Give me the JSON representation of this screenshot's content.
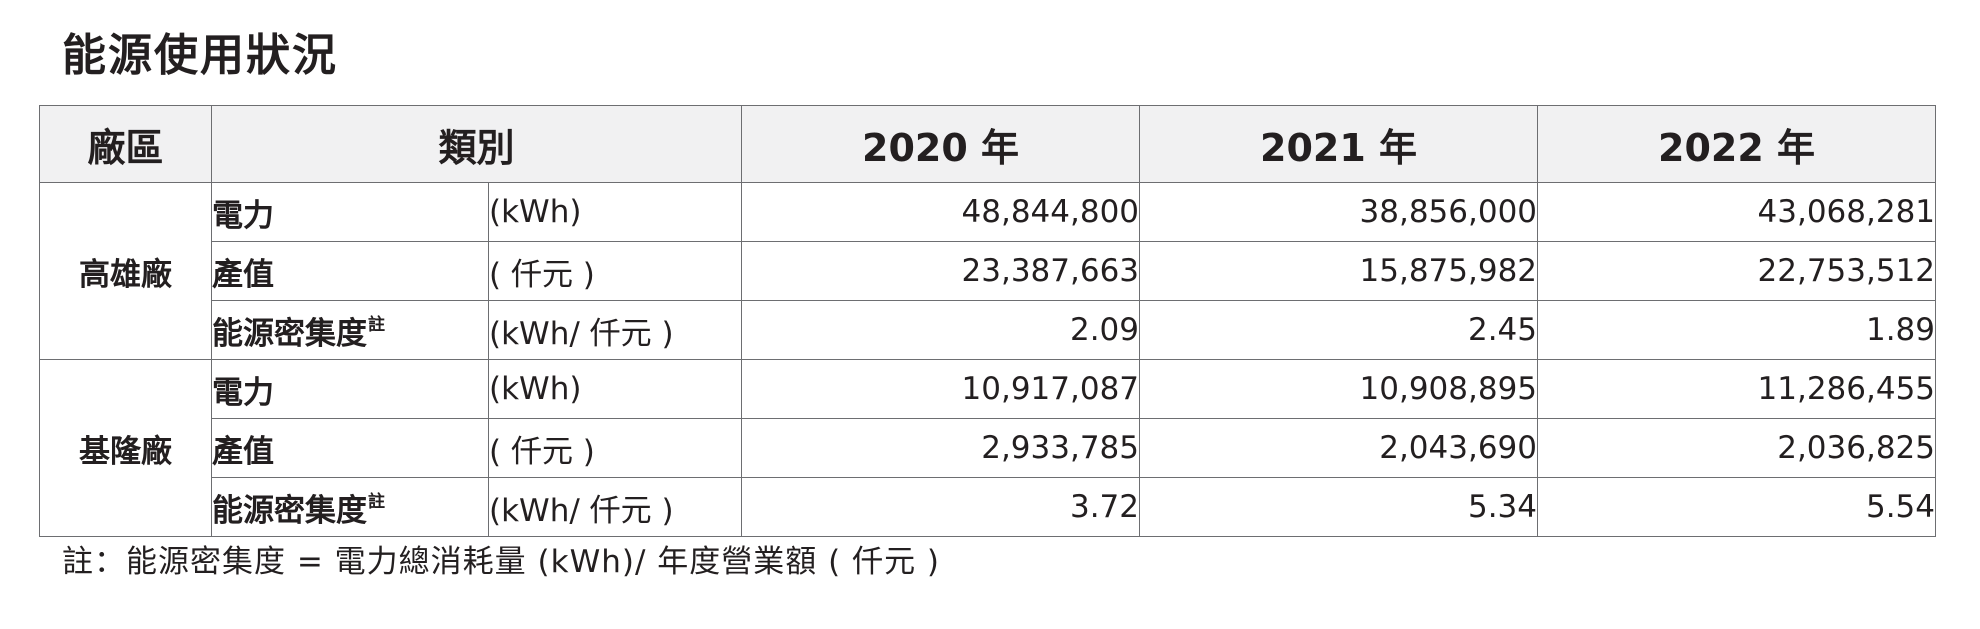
{
  "title": "能源使用狀況",
  "table": {
    "headers": {
      "factory": "廠區",
      "category": "類別",
      "years": [
        "2020 年",
        "2021 年",
        "2022 年"
      ]
    },
    "groups": [
      {
        "factory": "高雄廠",
        "rows": [
          {
            "category": "電力",
            "note": "",
            "unit": "(kWh)",
            "values": [
              "48,844,800",
              "38,856,000",
              "43,068,281"
            ]
          },
          {
            "category": "產值",
            "note": "",
            "unit": "( 仟元 )",
            "values": [
              "23,387,663",
              "15,875,982",
              "22,753,512"
            ]
          },
          {
            "category": "能源密集度",
            "note": "註",
            "unit": "(kWh/ 仟元 )",
            "values": [
              "2.09",
              "2.45",
              "1.89"
            ]
          }
        ]
      },
      {
        "factory": "基隆廠",
        "rows": [
          {
            "category": "電力",
            "note": "",
            "unit": "(kWh)",
            "values": [
              "10,917,087",
              "10,908,895",
              "11,286,455"
            ]
          },
          {
            "category": "產值",
            "note": "",
            "unit": "( 仟元 )",
            "values": [
              "2,933,785",
              "2,043,690",
              "2,036,825"
            ]
          },
          {
            "category": "能源密集度",
            "note": "註",
            "unit": "(kWh/ 仟元 )",
            "values": [
              "3.72",
              "5.34",
              "5.54"
            ]
          }
        ]
      }
    ]
  },
  "footnote": "註：能源密集度 = 電力總消耗量 (kWh)/ 年度營業額 ( 仟元 )"
}
